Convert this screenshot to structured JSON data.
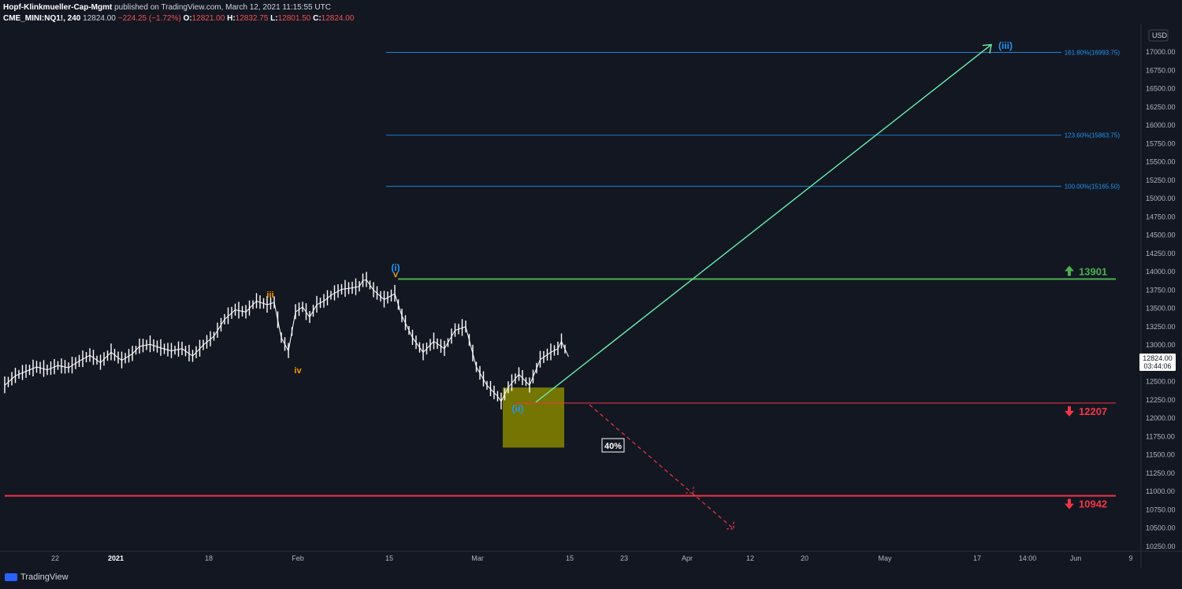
{
  "header": {
    "line1_author": "Hopf-Klinkmueller-Cap-Mgmt",
    "line1_rest": " published on TradingView.com, March 12, 2021 11:15:55 UTC",
    "symbol": "CME_MINI:NQ1!, 240",
    "last": "12824.00",
    "change": "−224.25 (−1.72%)",
    "o_label": "O:",
    "o": "12821.00",
    "h_label": "H:",
    "h": "12832.75",
    "l_label": "L:",
    "l": "12801.50",
    "c_label": "C:",
    "c": "12824.00"
  },
  "footer": {
    "brand": "TradingView"
  },
  "colors": {
    "bg": "#131722",
    "green": "#4caf50",
    "red": "#f23645",
    "blue": "#2196f3",
    "orange": "#ff9800",
    "box": "#808000"
  },
  "chart_data": {
    "type": "candlestick",
    "y_axis_unit": "USD",
    "ylim": [
      10150,
      17250
    ],
    "yticks": [
      10250,
      10500,
      10750,
      11000,
      11250,
      11500,
      11750,
      12000,
      12250,
      12500,
      12750,
      13000,
      13250,
      13500,
      13750,
      14000,
      14250,
      14500,
      14750,
      15000,
      15250,
      15500,
      15750,
      16000,
      16250,
      16500,
      16750,
      17000
    ],
    "x_tick_labels": [
      "22",
      "2021",
      "18",
      "Feb",
      "15",
      "Mar",
      "15",
      "23",
      "Apr",
      "12",
      "20",
      "May",
      "17",
      "14:00",
      "Jun",
      "9"
    ],
    "price_label": {
      "value": "12824.00",
      "countdown": "03:44:06"
    },
    "price_path": [
      [
        0,
        12450
      ],
      [
        3,
        12580
      ],
      [
        6,
        12640
      ],
      [
        9,
        12700
      ],
      [
        12,
        12660
      ],
      [
        15,
        12720
      ],
      [
        18,
        12690
      ],
      [
        21,
        12780
      ],
      [
        24,
        12860
      ],
      [
        27,
        12760
      ],
      [
        30,
        12900
      ],
      [
        33,
        12790
      ],
      [
        36,
        12880
      ],
      [
        38,
        12980
      ],
      [
        41,
        13010
      ],
      [
        44,
        12960
      ],
      [
        47,
        12920
      ],
      [
        50,
        12950
      ],
      [
        53,
        12850
      ],
      [
        56,
        13000
      ],
      [
        59,
        13120
      ],
      [
        62,
        13350
      ],
      [
        65,
        13480
      ],
      [
        68,
        13450
      ],
      [
        71,
        13600
      ],
      [
        74,
        13550
      ],
      [
        76,
        13580
      ],
      [
        78,
        13100
      ],
      [
        80,
        12920
      ],
      [
        82,
        13450
      ],
      [
        84,
        13520
      ],
      [
        86,
        13380
      ],
      [
        88,
        13550
      ],
      [
        90,
        13600
      ],
      [
        92,
        13680
      ],
      [
        95,
        13760
      ],
      [
        98,
        13780
      ],
      [
        100,
        13800
      ],
      [
        101,
        13880
      ],
      [
        102,
        13890
      ],
      [
        104,
        13750
      ],
      [
        107,
        13620
      ],
      [
        110,
        13700
      ],
      [
        112,
        13400
      ],
      [
        115,
        13100
      ],
      [
        118,
        12900
      ],
      [
        121,
        13050
      ],
      [
        124,
        12950
      ],
      [
        127,
        13200
      ],
      [
        130,
        13250
      ],
      [
        133,
        12700
      ],
      [
        136,
        12450
      ],
      [
        139,
        12300
      ],
      [
        140,
        12230
      ],
      [
        142,
        12420
      ],
      [
        145,
        12600
      ],
      [
        148,
        12450
      ],
      [
        151,
        12800
      ],
      [
        154,
        12900
      ],
      [
        156,
        12950
      ],
      [
        157,
        13050
      ],
      [
        159,
        12840
      ]
    ],
    "series_line_color": "#ffffff",
    "fib_levels": [
      {
        "label": "161.80%(16993.75)",
        "value": 16993.75
      },
      {
        "label": "123.60%(15863.75)",
        "value": 15863.75
      },
      {
        "label": "100.00%(15165.50)",
        "value": 15165.5
      }
    ],
    "levels": [
      {
        "label": "13901",
        "value": 13901,
        "color": "#4caf50",
        "direction": "up"
      },
      {
        "label": "12207",
        "value": 12207,
        "color": "#f23645",
        "direction": "down"
      },
      {
        "label": "10942",
        "value": 10942,
        "color": "#f23645",
        "direction": "down"
      }
    ],
    "wave_labels": [
      {
        "text": "iii",
        "color": "#ff9800"
      },
      {
        "text": "iv",
        "color": "#ff9800"
      },
      {
        "text": "v",
        "color": "#ff9800"
      },
      {
        "text": "(i)",
        "color": "#2196f3"
      },
      {
        "text": "(ii)",
        "color": "#2196f3"
      },
      {
        "text": "(iii)",
        "color": "#2196f3"
      }
    ],
    "zone_box": {
      "from": 11600,
      "to": 12420
    },
    "projection_up": {
      "from": 12220,
      "to": 17100
    },
    "projection_down": {
      "from": 12207,
      "to": 10490,
      "label": "40%"
    }
  }
}
